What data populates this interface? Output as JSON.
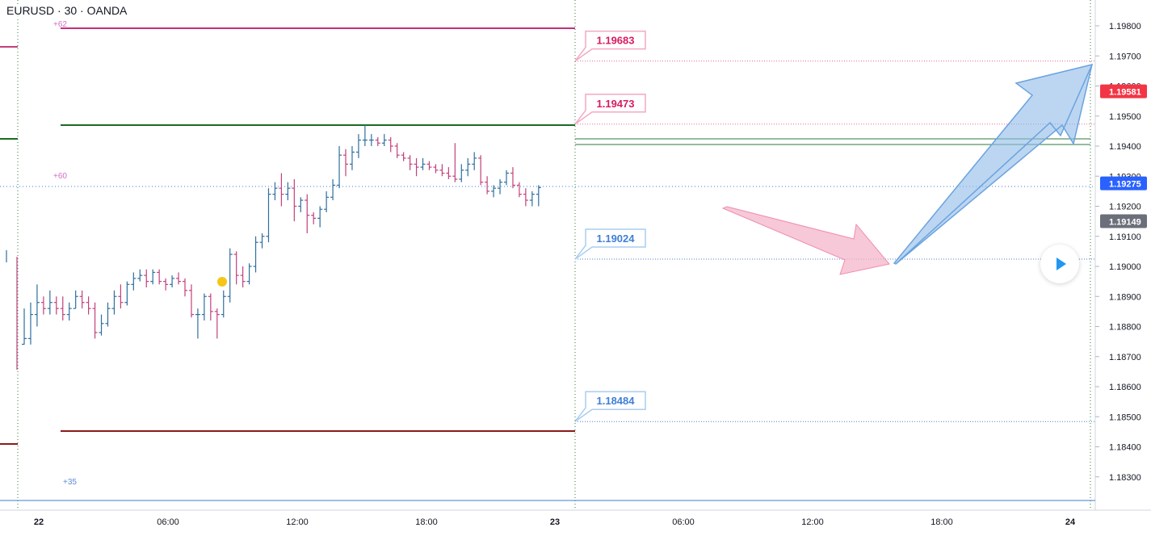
{
  "header": {
    "symbol": "EURUSD",
    "interval": "30",
    "broker": "OANDA"
  },
  "chart_data": {
    "type": "ohlc",
    "symbol": "EURUSD",
    "interval": "30",
    "ylim": [
      1.1823,
      1.1993
    ],
    "y_ticks": [
      "1.19800",
      "1.19700",
      "1.19600",
      "1.19500",
      "1.19400",
      "1.19300",
      "1.19200",
      "1.19100",
      "1.19000",
      "1.18900",
      "1.18800",
      "1.18700",
      "1.18600",
      "1.18500",
      "1.18400",
      "1.18300"
    ],
    "x_ticks": [
      "22",
      "06:00",
      "12:00",
      "18:00",
      "23",
      "06:00",
      "12:00",
      "18:00",
      "24"
    ],
    "bars": [
      [
        1.18741,
        1.1886,
        1.1874,
        1.1876
      ],
      [
        1.1876,
        1.1888,
        1.1874,
        1.1884
      ],
      [
        1.1884,
        1.1894,
        1.188,
        1.1888
      ],
      [
        1.1888,
        1.189,
        1.1884,
        1.1886
      ],
      [
        1.1886,
        1.1892,
        1.1884,
        1.1888
      ],
      [
        1.1888,
        1.189,
        1.1884,
        1.1886
      ],
      [
        1.1886,
        1.189,
        1.1882,
        1.1884
      ],
      [
        1.1884,
        1.1888,
        1.1882,
        1.1886
      ],
      [
        1.1886,
        1.1892,
        1.1886,
        1.189
      ],
      [
        1.189,
        1.1892,
        1.1886,
        1.1888
      ],
      [
        1.1888,
        1.189,
        1.1884,
        1.1886
      ],
      [
        1.1886,
        1.1888,
        1.1876,
        1.1878
      ],
      [
        1.1878,
        1.1884,
        1.1877,
        1.1881
      ],
      [
        1.1881,
        1.1888,
        1.188,
        1.1886
      ],
      [
        1.1886,
        1.1892,
        1.1884,
        1.189
      ],
      [
        1.189,
        1.1894,
        1.1886,
        1.1888
      ],
      [
        1.1888,
        1.1895,
        1.1887,
        1.1894
      ],
      [
        1.1894,
        1.1898,
        1.1892,
        1.1896
      ],
      [
        1.1896,
        1.1899,
        1.1895,
        1.1897
      ],
      [
        1.1897,
        1.1899,
        1.1893,
        1.1895
      ],
      [
        1.1895,
        1.1899,
        1.1894,
        1.1898
      ],
      [
        1.1898,
        1.1899,
        1.1894,
        1.1895
      ],
      [
        1.1895,
        1.1896,
        1.1892,
        1.1894
      ],
      [
        1.1894,
        1.1897,
        1.1893,
        1.1896
      ],
      [
        1.1896,
        1.1898,
        1.1894,
        1.1895
      ],
      [
        1.1895,
        1.1896,
        1.189,
        1.1892
      ],
      [
        1.1892,
        1.1894,
        1.1883,
        1.1884
      ],
      [
        1.1884,
        1.1886,
        1.1876,
        1.1884
      ],
      [
        1.1884,
        1.1891,
        1.1882,
        1.189
      ],
      [
        1.189,
        1.1891,
        1.1882,
        1.1885
      ],
      [
        1.1885,
        1.1886,
        1.1876,
        1.1884
      ],
      [
        1.1884,
        1.1892,
        1.1883,
        1.189
      ],
      [
        1.189,
        1.1906,
        1.1888,
        1.1904
      ],
      [
        1.1904,
        1.1905,
        1.1894,
        1.1897
      ],
      [
        1.1897,
        1.19,
        1.1893,
        1.1895
      ],
      [
        1.1895,
        1.1901,
        1.1894,
        1.19
      ],
      [
        1.19,
        1.191,
        1.1898,
        1.1908
      ],
      [
        1.1908,
        1.1911,
        1.1906,
        1.191
      ],
      [
        1.191,
        1.1926,
        1.1908,
        1.1924
      ],
      [
        1.1924,
        1.1928,
        1.1922,
        1.1926
      ],
      [
        1.1926,
        1.1931,
        1.192,
        1.1924
      ],
      [
        1.1924,
        1.1928,
        1.1922,
        1.1926
      ],
      [
        1.1926,
        1.1929,
        1.1915,
        1.192
      ],
      [
        1.192,
        1.1923,
        1.1918,
        1.1922
      ],
      [
        1.1922,
        1.1924,
        1.1911,
        1.1917
      ],
      [
        1.1917,
        1.1918,
        1.1914,
        1.1916
      ],
      [
        1.1916,
        1.192,
        1.1913,
        1.1919
      ],
      [
        1.1919,
        1.1925,
        1.1918,
        1.1923
      ],
      [
        1.1923,
        1.1929,
        1.1922,
        1.1927
      ],
      [
        1.1927,
        1.194,
        1.1926,
        1.1937
      ],
      [
        1.1937,
        1.1939,
        1.193,
        1.1934
      ],
      [
        1.1934,
        1.194,
        1.1932,
        1.1938
      ],
      [
        1.1938,
        1.1944,
        1.1936,
        1.1942
      ],
      [
        1.1942,
        1.1947,
        1.194,
        1.1942
      ],
      [
        1.1942,
        1.1944,
        1.194,
        1.1942
      ],
      [
        1.1942,
        1.1943,
        1.194,
        1.1941
      ],
      [
        1.1941,
        1.1944,
        1.194,
        1.1942
      ],
      [
        1.1942,
        1.1943,
        1.1938,
        1.194
      ],
      [
        1.194,
        1.1941,
        1.1936,
        1.1937
      ],
      [
        1.1937,
        1.1938,
        1.1935,
        1.1936
      ],
      [
        1.1936,
        1.1937,
        1.1932,
        1.1934
      ],
      [
        1.1934,
        1.1936,
        1.193,
        1.1933
      ],
      [
        1.1933,
        1.1936,
        1.1932,
        1.1934
      ],
      [
        1.1934,
        1.1935,
        1.1932,
        1.1933
      ],
      [
        1.1933,
        1.1934,
        1.1931,
        1.1932
      ],
      [
        1.1932,
        1.1934,
        1.193,
        1.1931
      ],
      [
        1.1931,
        1.1933,
        1.1929,
        1.193
      ],
      [
        1.193,
        1.1941,
        1.1928,
        1.1929
      ],
      [
        1.1929,
        1.1934,
        1.1928,
        1.1932
      ],
      [
        1.1932,
        1.1936,
        1.193,
        1.1934
      ],
      [
        1.1934,
        1.1938,
        1.1932,
        1.1936
      ],
      [
        1.1936,
        1.1937,
        1.1927,
        1.1928
      ],
      [
        1.1928,
        1.193,
        1.1924,
        1.1925
      ],
      [
        1.1925,
        1.1927,
        1.1923,
        1.1926
      ],
      [
        1.1926,
        1.1929,
        1.1924,
        1.1928
      ],
      [
        1.1928,
        1.1932,
        1.1927,
        1.1931
      ],
      [
        1.1931,
        1.1933,
        1.1926,
        1.1927
      ],
      [
        1.1927,
        1.1928,
        1.1923,
        1.1924
      ],
      [
        1.1924,
        1.1926,
        1.192,
        1.1922
      ],
      [
        1.1922,
        1.1925,
        1.192,
        1.1924
      ],
      [
        1.1924,
        1.1927,
        1.192,
        1.19262
      ]
    ],
    "levels": [
      {
        "price": 1.19683,
        "label": "1.19683",
        "color": "#d81b60"
      },
      {
        "price": 1.19473,
        "label": "1.19473",
        "color": "#d81b60"
      },
      {
        "price": 1.19024,
        "label": "1.19024",
        "color": "#3f7fd6"
      },
      {
        "price": 1.18484,
        "label": "1.18484",
        "color": "#3f7fd6"
      }
    ],
    "range_annotations": [
      "+62",
      "+60",
      "+35"
    ],
    "price_badges": [
      {
        "label": "1.19581",
        "price": 1.19581,
        "color": "#f23645"
      },
      {
        "label": "1.19275",
        "price": 1.19275,
        "color": "#2962ff"
      },
      {
        "label": "1.19149",
        "price": 1.19149,
        "color": "#6b6f7a"
      }
    ],
    "colors": {
      "up": "#2e6f9e",
      "down": "#c2407a",
      "pink_arrow": "#f4b6c9",
      "blue_arrow": "#8fbbe8"
    },
    "grid": false
  }
}
